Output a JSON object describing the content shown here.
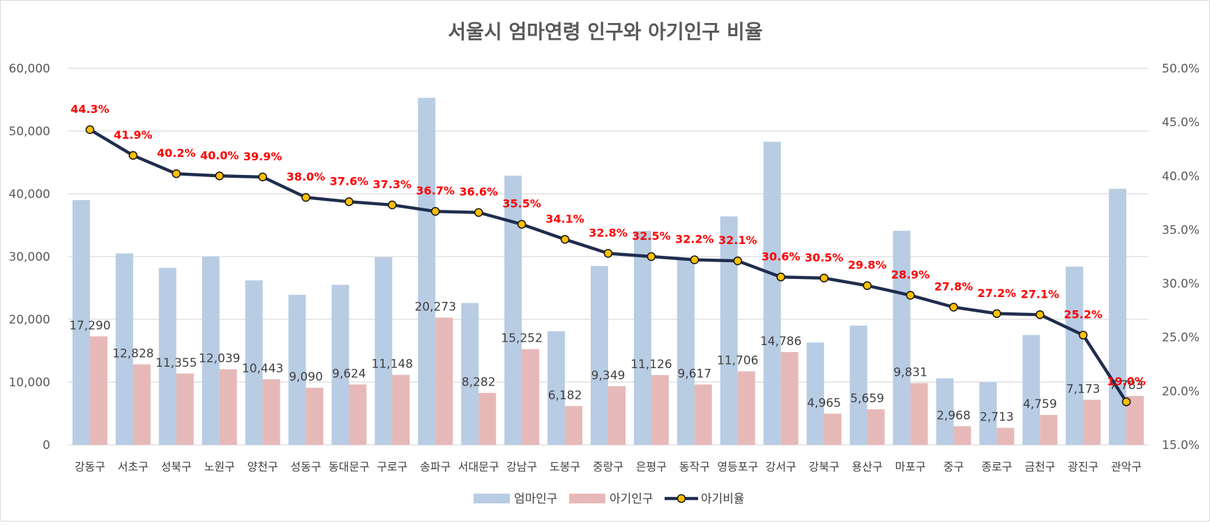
{
  "chart_data": {
    "type": "bar",
    "title": "서울시 엄마연령 인구와 아기인구 비율",
    "categories": [
      "강동구",
      "서초구",
      "성북구",
      "노원구",
      "양천구",
      "성동구",
      "동대문구",
      "구로구",
      "송파구",
      "서대문구",
      "강남구",
      "도봉구",
      "중랑구",
      "은평구",
      "동작구",
      "영등포구",
      "강서구",
      "강북구",
      "용산구",
      "마포구",
      "중구",
      "종로구",
      "금천구",
      "광진구",
      "관악구"
    ],
    "series": [
      {
        "name": "엄마인구",
        "type": "bar",
        "color": "#b8cce4",
        "axis": "left",
        "values": [
          39000,
          30500,
          28200,
          30000,
          26200,
          23900,
          25500,
          29900,
          55300,
          22600,
          42900,
          18100,
          28500,
          34100,
          29800,
          36400,
          48300,
          16300,
          19000,
          34100,
          10600,
          10000,
          17500,
          28400,
          40800
        ]
      },
      {
        "name": "아기인구",
        "type": "bar",
        "color": "#e6b9b8",
        "axis": "left",
        "values": [
          17290,
          12828,
          11355,
          12039,
          10443,
          9090,
          9624,
          11148,
          20273,
          8282,
          15252,
          6182,
          9349,
          11126,
          9617,
          11706,
          14786,
          4965,
          5659,
          9831,
          2968,
          2713,
          4759,
          7173,
          7783
        ]
      },
      {
        "name": "아기비율",
        "type": "line",
        "color": "#1f2d4e",
        "marker_color": "#ffc000",
        "axis": "right",
        "values": [
          44.3,
          41.9,
          40.2,
          40.0,
          39.9,
          38.0,
          37.6,
          37.3,
          36.7,
          36.6,
          35.5,
          34.1,
          32.8,
          32.5,
          32.2,
          32.1,
          30.6,
          30.5,
          29.8,
          28.9,
          27.8,
          27.2,
          27.1,
          25.2,
          19.0
        ]
      }
    ],
    "baby_labels": [
      "17,290",
      "12,828",
      "11,355",
      "12,039",
      "10,443",
      "9,090",
      "9,624",
      "11,148",
      "20,273",
      "8,282",
      "15,252",
      "6,182",
      "9,349",
      "11,126",
      "9,617",
      "11,706",
      "14,786",
      "4,965",
      "5,659",
      "9,831",
      "2,968",
      "2,713",
      "4,759",
      "7,173",
      "7,783"
    ],
    "ratio_labels": [
      "44.3%",
      "41.9%",
      "40.2%",
      "40.0%",
      "39.9%",
      "38.0%",
      "37.6%",
      "37.3%",
      "36.7%",
      "36.6%",
      "35.5%",
      "34.1%",
      "32.8%",
      "32.5%",
      "32.2%",
      "32.1%",
      "30.6%",
      "30.5%",
      "29.8%",
      "28.9%",
      "27.8%",
      "27.2%",
      "27.1%",
      "25.2%",
      "19.0%"
    ],
    "ylim": [
      0,
      60000
    ],
    "y_ticks": [
      "0",
      "10,000",
      "20,000",
      "30,000",
      "40,000",
      "50,000",
      "60,000"
    ],
    "y2lim": [
      15.0,
      50.0
    ],
    "y2_ticks": [
      "15.0%",
      "20.0%",
      "25.0%",
      "30.0%",
      "35.0%",
      "40.0%",
      "45.0%",
      "50.0%"
    ],
    "grid": true,
    "legend_position": "bottom",
    "legend": [
      "엄마인구",
      "아기인구",
      "아기비율"
    ],
    "label_color": "#ff0000"
  }
}
